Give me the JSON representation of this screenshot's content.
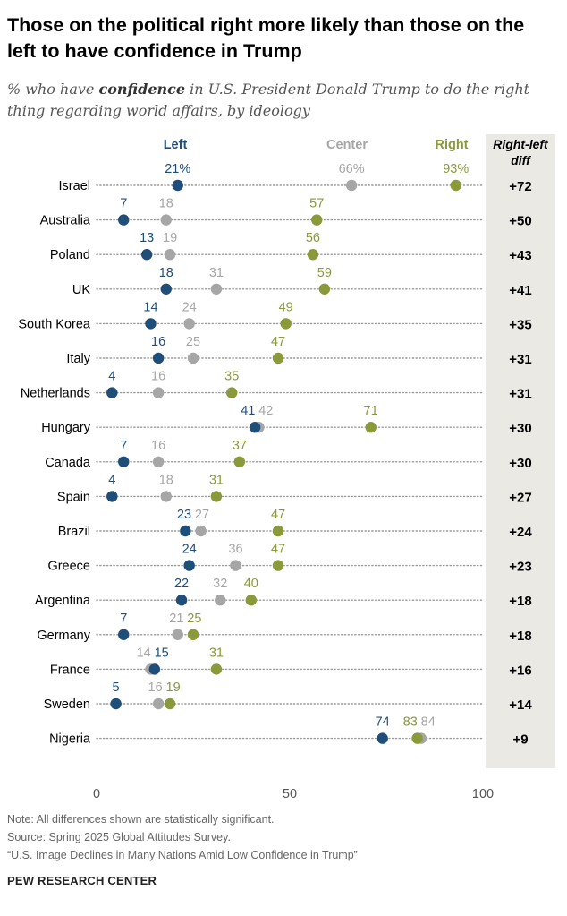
{
  "title": "Those on the political right more likely than those on the left to have confidence in Trump",
  "subtitle": {
    "prefix": "% who have ",
    "emphasis": "confidence",
    "suffix": " in U.S. President Donald Trump to do the right thing regarding world affairs, by ideology"
  },
  "notes": {
    "note": "Note: All differences shown are statistically significant.",
    "source": "Source: Spring 2025 Global Attitudes Survey.",
    "report": "“U.S. Image Declines in Many Nations Amid Low Confidence in Trump”"
  },
  "brand": "PEW RESEARCH CENTER",
  "colors": {
    "left": "#1f4e79",
    "center": "#a6a6a6",
    "right": "#8a9a3a",
    "diff_bg": "#ebe9e3",
    "dots": "#999999"
  },
  "chart_data": {
    "type": "dot",
    "title": "Those on the political right more likely than those on the left to have confidence in Trump",
    "xlim": [
      0,
      100
    ],
    "xticks": [
      "0",
      "50",
      "100"
    ],
    "diff_header": "Right-left diff",
    "series": [
      {
        "name": "Left",
        "key": "left"
      },
      {
        "name": "Center",
        "key": "center"
      },
      {
        "name": "Right",
        "key": "right"
      }
    ],
    "rows": [
      {
        "country": "Israel",
        "left": 21,
        "center": 66,
        "right": 93,
        "diff": "+72",
        "left_label": "21%",
        "center_label": "66%",
        "right_label": "93%"
      },
      {
        "country": "Australia",
        "left": 7,
        "center": 18,
        "right": 57,
        "diff": "+50",
        "left_label": "7",
        "center_label": "18",
        "right_label": "57"
      },
      {
        "country": "Poland",
        "left": 13,
        "center": 19,
        "right": 56,
        "diff": "+43",
        "left_label": "13",
        "center_label": "19",
        "right_label": "56"
      },
      {
        "country": "UK",
        "left": 18,
        "center": 31,
        "right": 59,
        "diff": "+41",
        "left_label": "18",
        "center_label": "31",
        "right_label": "59"
      },
      {
        "country": "South Korea",
        "left": 14,
        "center": 24,
        "right": 49,
        "diff": "+35",
        "left_label": "14",
        "center_label": "24",
        "right_label": "49"
      },
      {
        "country": "Italy",
        "left": 16,
        "center": 25,
        "right": 47,
        "diff": "+31",
        "left_label": "16",
        "center_label": "25",
        "right_label": "47"
      },
      {
        "country": "Netherlands",
        "left": 4,
        "center": 16,
        "right": 35,
        "diff": "+31",
        "left_label": "4",
        "center_label": "16",
        "right_label": "35"
      },
      {
        "country": "Hungary",
        "left": 41,
        "center": 42,
        "right": 71,
        "diff": "+30",
        "left_label": "41",
        "center_label": "42",
        "right_label": "71"
      },
      {
        "country": "Canada",
        "left": 7,
        "center": 16,
        "right": 37,
        "diff": "+30",
        "left_label": "7",
        "center_label": "16",
        "right_label": "37"
      },
      {
        "country": "Spain",
        "left": 4,
        "center": 18,
        "right": 31,
        "diff": "+27",
        "left_label": "4",
        "center_label": "18",
        "right_label": "31"
      },
      {
        "country": "Brazil",
        "left": 23,
        "center": 27,
        "right": 47,
        "diff": "+24",
        "left_label": "23",
        "center_label": "27",
        "right_label": "47"
      },
      {
        "country": "Greece",
        "left": 24,
        "center": 36,
        "right": 47,
        "diff": "+23",
        "left_label": "24",
        "center_label": "36",
        "right_label": "47"
      },
      {
        "country": "Argentina",
        "left": 22,
        "center": 32,
        "right": 40,
        "diff": "+18",
        "left_label": "22",
        "center_label": "32",
        "right_label": "40"
      },
      {
        "country": "Germany",
        "left": 7,
        "center": 21,
        "right": 25,
        "diff": "+18",
        "left_label": "7",
        "center_label": "21",
        "right_label": "25"
      },
      {
        "country": "France",
        "left": 15,
        "center": 14,
        "right": 31,
        "diff": "+16",
        "left_label": "15",
        "center_label": "14",
        "right_label": "31"
      },
      {
        "country": "Sweden",
        "left": 5,
        "center": 16,
        "right": 19,
        "diff": "+14",
        "left_label": "5",
        "center_label": "16",
        "right_label": "19"
      },
      {
        "country": "Nigeria",
        "left": 74,
        "center": 84,
        "right": 83,
        "diff": "+9",
        "left_label": "74",
        "center_label": "84",
        "right_label": "83"
      }
    ]
  }
}
